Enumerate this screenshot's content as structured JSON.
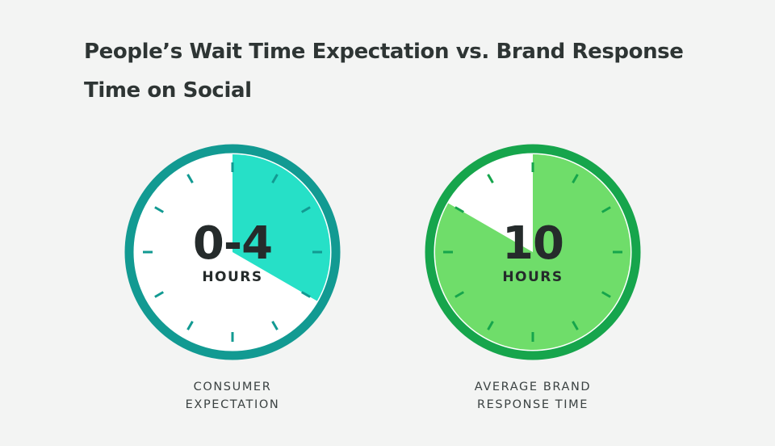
{
  "title": {
    "line1": "People’s Wait Time Expectation vs. Brand Response",
    "line2": "Time on Social"
  },
  "chart_data": [
    {
      "type": "pie",
      "name": "consumer-expectation",
      "value_label": "0-4",
      "unit_label": "HOURS",
      "caption": [
        "CONSUMER",
        "EXPECTATION"
      ],
      "filled_hours": [
        0,
        4
      ],
      "dial_hours": 12,
      "colors": {
        "ring": "#129a92",
        "fill": "#26e0c7",
        "face": "#ffffff",
        "tick": "#129a92"
      }
    },
    {
      "type": "pie",
      "name": "average-brand-response",
      "value_label": "10",
      "unit_label": "HOURS",
      "caption": [
        "AVERAGE BRAND",
        "RESPONSE TIME"
      ],
      "filled_hours": [
        0,
        10
      ],
      "dial_hours": 12,
      "colors": {
        "ring": "#16a54c",
        "fill": "#6fdd6a",
        "face": "#ffffff",
        "tick": "#16a54c"
      }
    }
  ],
  "colors": {
    "background": "#f3f4f3",
    "title": "#2e3534",
    "number": "#252b2b"
  }
}
